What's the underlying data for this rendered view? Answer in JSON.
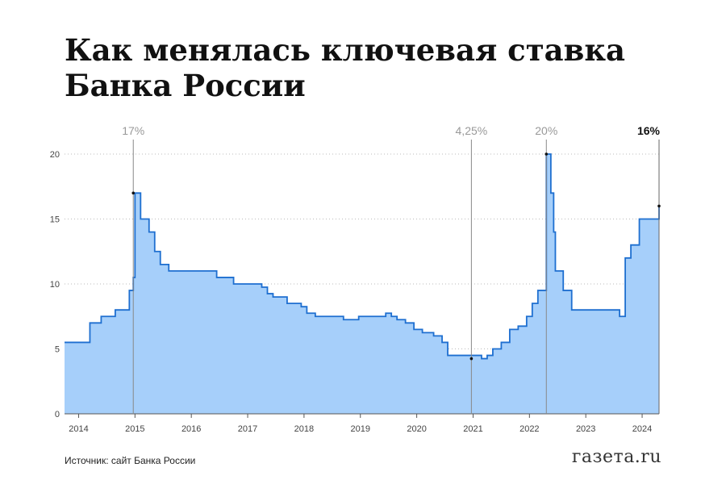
{
  "title_lines": [
    "Как менялась ключевая ставка",
    "Банка России"
  ],
  "source": "Источник: сайт Банка России",
  "logo": "газета.ru",
  "colors": {
    "fill": "#a6cffa",
    "line": "#1e6fd0",
    "grid": "#bbbbbb",
    "annotation": "#999999"
  },
  "chart_data": {
    "type": "area",
    "step": true,
    "title": "Как менялась ключевая ставка Банка России",
    "xlim": [
      2013.75,
      2024.3
    ],
    "ylim": [
      0,
      20
    ],
    "y_ticks": [
      0,
      5,
      10,
      15,
      20
    ],
    "x_ticks": [
      2014,
      2015,
      2016,
      2017,
      2018,
      2019,
      2020,
      2021,
      2022,
      2023,
      2024
    ],
    "grid": "horizontal dotted",
    "series": [
      {
        "x": [
          2013.75,
          2014.2,
          2014.4,
          2014.65,
          2014.9,
          2014.97,
          2015.0,
          2015.1,
          2015.25,
          2015.35,
          2015.45,
          2015.6,
          2016.45,
          2016.75,
          2017.25,
          2017.35,
          2017.45,
          2017.7,
          2017.95,
          2018.05,
          2018.2,
          2018.7,
          2018.97,
          2019.45,
          2019.55,
          2019.65,
          2019.8,
          2019.95,
          2020.1,
          2020.3,
          2020.45,
          2020.55,
          2021.15,
          2021.25,
          2021.35,
          2021.5,
          2021.65,
          2021.8,
          2021.95,
          2022.05,
          2022.15,
          2022.3,
          2022.38,
          2022.43,
          2022.46,
          2022.6,
          2022.75,
          2023.6,
          2023.7,
          2023.8,
          2023.95,
          2024.3
        ],
        "y": [
          5.5,
          7.0,
          7.5,
          8.0,
          9.5,
          10.5,
          17.0,
          15.0,
          14.0,
          12.5,
          11.5,
          11.0,
          10.5,
          10.0,
          9.75,
          9.25,
          9.0,
          8.5,
          8.25,
          7.75,
          7.5,
          7.25,
          7.5,
          7.75,
          7.5,
          7.25,
          7.0,
          6.5,
          6.25,
          6.0,
          5.5,
          4.5,
          4.25,
          4.5,
          5.0,
          5.5,
          6.5,
          6.75,
          7.5,
          8.5,
          9.5,
          20.0,
          17.0,
          14.0,
          11.0,
          9.5,
          8.0,
          7.5,
          12.0,
          13.0,
          15.0,
          16.0
        ]
      }
    ],
    "annotations": [
      {
        "x": 2014.97,
        "y": 17,
        "label": "17%"
      },
      {
        "x": 2020.97,
        "y": 4.25,
        "label": "4,25%"
      },
      {
        "x": 2022.3,
        "y": 20,
        "label": "20%"
      },
      {
        "x": 2024.3,
        "y": 16,
        "label": "16%",
        "emphasis": true
      }
    ]
  }
}
